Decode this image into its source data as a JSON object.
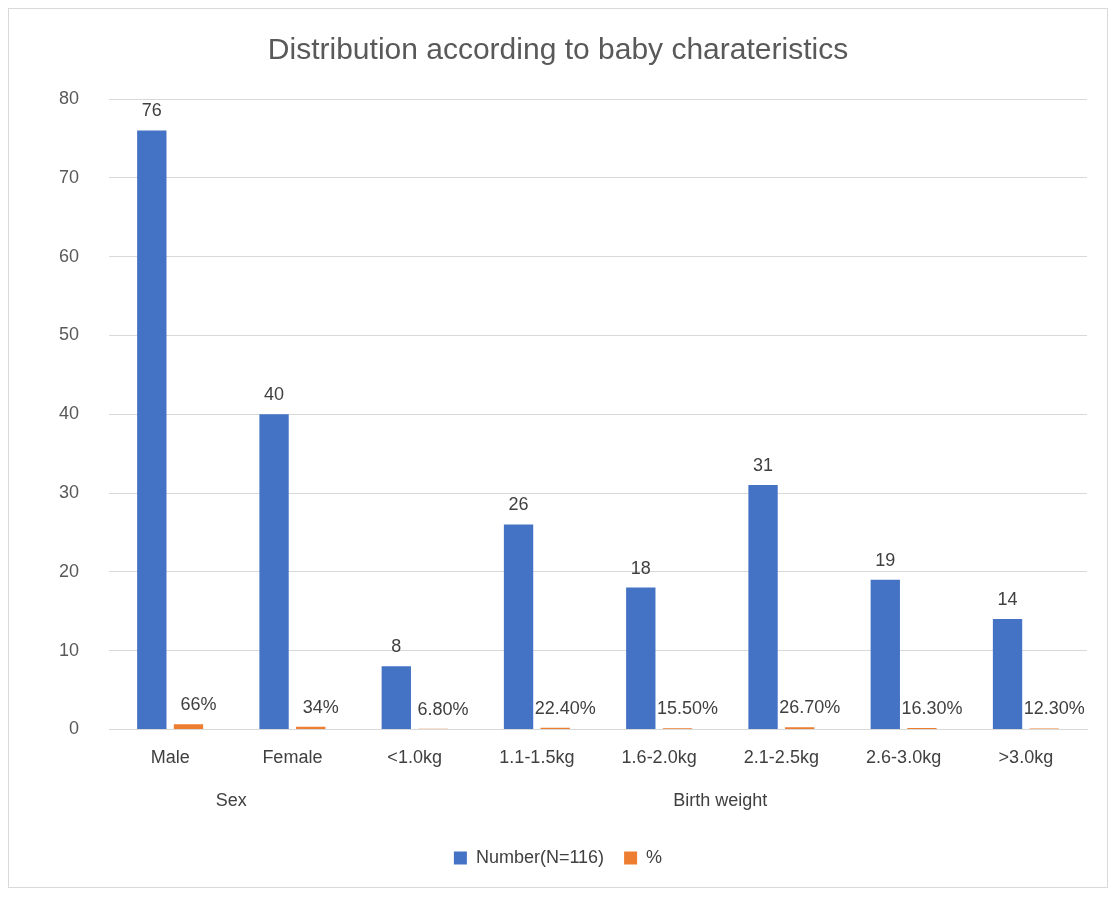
{
  "chart_data": {
    "type": "bar",
    "title": "Distribution according to baby charateristics",
    "categories": [
      "Male",
      "Female",
      "<1.0kg",
      "1.1-1.5kg",
      "1.6-2.0kg",
      "2.1-2.5kg",
      "2.6-3.0kg",
      ">3.0kg"
    ],
    "series": [
      {
        "name": "Number(N=116)",
        "color": "#4472c4",
        "values": [
          76,
          40,
          8,
          26,
          18,
          31,
          19,
          14
        ]
      },
      {
        "name": "%",
        "color": "#ed7d31",
        "values": [
          0.66,
          0.34,
          0.068,
          0.224,
          0.155,
          0.267,
          0.163,
          0.123
        ],
        "value_labels": [
          "66%",
          "34%",
          "6.80%",
          "22.40%",
          "15.50%",
          "26.70%",
          "16.30%",
          "12.30%"
        ]
      }
    ],
    "ylim": [
      0,
      80
    ],
    "yticks": [
      0,
      10,
      20,
      30,
      40,
      50,
      60,
      70,
      80
    ],
    "grid": "y",
    "legend": "bottom",
    "data_labels": true,
    "annotations": [
      "Sex",
      "Birth weight"
    ]
  }
}
